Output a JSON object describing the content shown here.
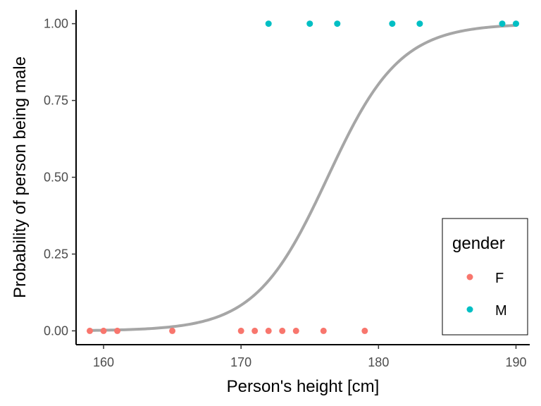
{
  "chart_data": {
    "type": "scatter",
    "title": "",
    "xlabel": "Person's height [cm]",
    "ylabel": "Probability of person being male",
    "xlim": [
      158,
      191
    ],
    "ylim": [
      -0.045,
      1.045
    ],
    "x_ticks": [
      160,
      170,
      180,
      190
    ],
    "y_ticks": [
      0.0,
      0.25,
      0.5,
      0.75,
      1.0
    ],
    "x_tick_labels": [
      "160",
      "170",
      "180",
      "190"
    ],
    "y_tick_labels": [
      "0.00",
      "0.25",
      "0.50",
      "0.75",
      "1.00"
    ],
    "grid": false,
    "legend": {
      "title": "gender",
      "placement": "bottom-right",
      "entries": [
        {
          "label": "F",
          "color": "#F8766D"
        },
        {
          "label": "M",
          "color": "#00BFC4"
        }
      ]
    },
    "series": [
      {
        "name": "F",
        "color": "#F8766D",
        "points": [
          [
            159,
            0
          ],
          [
            160,
            0
          ],
          [
            161,
            0
          ],
          [
            165,
            0
          ],
          [
            170,
            0
          ],
          [
            171,
            0
          ],
          [
            172,
            0
          ],
          [
            173,
            0
          ],
          [
            174,
            0
          ],
          [
            176,
            0
          ],
          [
            179,
            0
          ]
        ]
      },
      {
        "name": "M",
        "color": "#00BFC4",
        "points": [
          [
            172,
            1
          ],
          [
            175,
            1
          ],
          [
            177,
            1
          ],
          [
            181,
            1
          ],
          [
            183,
            1
          ],
          [
            189,
            1
          ],
          [
            190,
            1
          ]
        ]
      }
    ],
    "fit_curve": {
      "type": "logistic",
      "color": "#A6A6A6",
      "midpoint": 176.3,
      "slope": 0.38,
      "x_range": [
        159,
        190
      ]
    }
  }
}
